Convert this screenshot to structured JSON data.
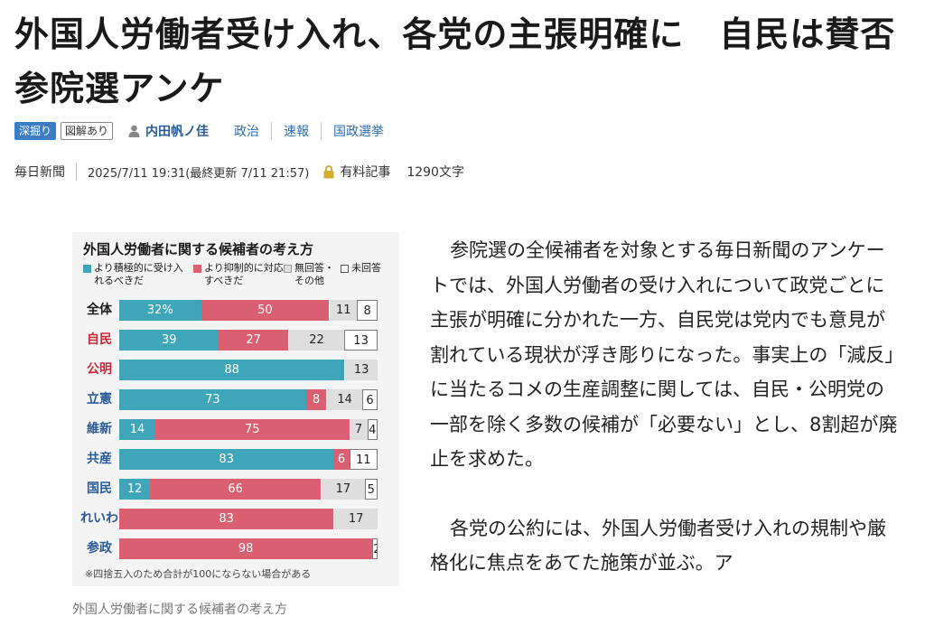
{
  "article": {
    "title": "外国人労働者受け入れ、各党の主張明確に　自民は賛否　参院選アンケ",
    "tags": [
      "深掘り",
      "図解あり"
    ],
    "author": "内田帆ノ佳",
    "categories": [
      "政治",
      "速報",
      "国政選挙"
    ],
    "source": "毎日新聞",
    "datetime": "2025/7/11 19:31(最終更新 7/11 21:57)",
    "paid_label": "有料記事",
    "char_count": "1290文字",
    "paragraphs": [
      "参院選の全候補者を対象とする毎日新聞のアンケートでは、外国人労働者の受け入れについて政党ごとに主張が明確に分かれた一方、自民党は党内でも意見が割れている現状が浮き彫りになった。事実上の「減反」に当たるコメの生産調整に関しては、自民・公明党の一部を除く多数の候補が「必要ない」とし、8割超が廃止を求めた。",
      "各党の公約には、外国人労働者受け入れの規制や厳格化に焦点をあてた施策が並ぶ。ア"
    ]
  },
  "figure": {
    "caption": "外国人労働者に関する候補者の考え方",
    "colors": {
      "s1": "#3fa6b9",
      "s2": "#d95f71",
      "s3": "#dedede",
      "s4": "#ffffff"
    },
    "note": "※四捨五入のため合計が100にならない場合がある"
  },
  "chart_data": {
    "type": "bar",
    "orientation": "horizontal",
    "stacked": true,
    "title": "外国人労働者に関する候補者の考え方",
    "categories": [
      "全体",
      "自民",
      "公明",
      "立憲",
      "維新",
      "共産",
      "国民",
      "れいわ",
      "参政"
    ],
    "category_colors": [
      "#1a1a1a",
      "#c8283c",
      "#c8283c",
      "#2a5a96",
      "#2a5a96",
      "#2a5a96",
      "#2a5a96",
      "#2a5a96",
      "#2a5a96"
    ],
    "series": [
      {
        "name": "より積極的に受け入れるべきだ",
        "values": [
          32,
          39,
          88,
          73,
          14,
          83,
          12,
          0,
          0
        ]
      },
      {
        "name": "より抑制的に対応すべきだ",
        "values": [
          50,
          27,
          0,
          8,
          75,
          6,
          66,
          83,
          98
        ]
      },
      {
        "name": "無回答・その他",
        "values": [
          11,
          22,
          13,
          14,
          7,
          0,
          17,
          17,
          0
        ]
      },
      {
        "name": "未回答",
        "values": [
          8,
          13,
          0,
          6,
          4,
          11,
          5,
          0,
          2
        ]
      }
    ],
    "labels": [
      [
        "32%",
        "50",
        "11",
        "8"
      ],
      [
        "39",
        "27",
        "22",
        "13"
      ],
      [
        "88",
        "",
        "13",
        ""
      ],
      [
        "73",
        "8",
        "14",
        "6"
      ],
      [
        "14",
        "75",
        "7",
        "4"
      ],
      [
        "83",
        "6",
        "",
        "11"
      ],
      [
        "12",
        "66",
        "17",
        "5"
      ],
      [
        "",
        "83",
        "17",
        ""
      ],
      [
        "",
        "98",
        "",
        "2"
      ]
    ],
    "xlim": [
      0,
      100
    ]
  }
}
